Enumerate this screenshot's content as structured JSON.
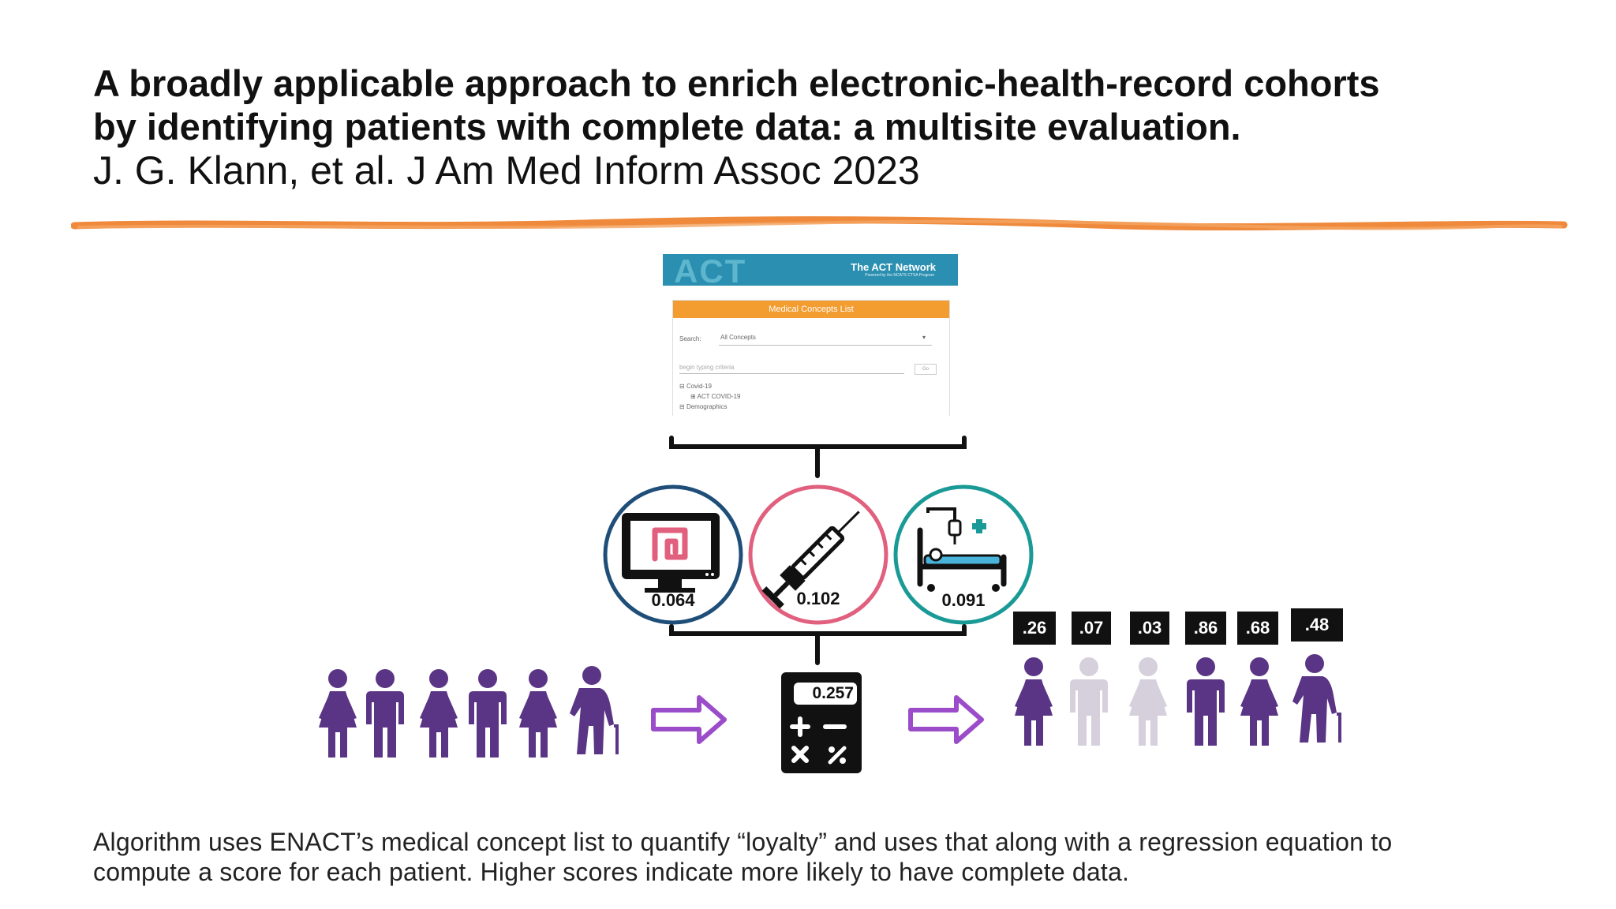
{
  "title": {
    "line1": "A broadly applicable approach to enrich electronic-health-record cohorts",
    "line2": "by identifying patients with complete data: a multisite evaluation."
  },
  "citation": "J. G. Klann, et al. J Am Med Inform Assoc 2023",
  "act_screenshot": {
    "logo": "ACT",
    "network": "The ACT Network",
    "network_sub": "Powered by the NCATS CTSA Program",
    "panel_title": "Medical Concepts List",
    "search_label": "Search:",
    "search_value": "All Concepts",
    "search_placeholder": "begin typing criteria",
    "go_button": "Go",
    "tree": [
      "Covid-19",
      "ACT COVID-19",
      "Demographics"
    ]
  },
  "loyalty_values": [
    {
      "icon": "monitor-intestine-icon",
      "value": "0.064",
      "color": "#1f4e79"
    },
    {
      "icon": "syringe-icon",
      "value": "0.102",
      "color": "#e0607e"
    },
    {
      "icon": "hospital-bed-icon",
      "value": "0.091",
      "color": "#1a9a96"
    }
  ],
  "calculator_value": "0.257",
  "patient_scores": [
    ".26",
    ".07",
    ".03",
    ".86",
    ".68",
    ".48"
  ],
  "colors": {
    "purple": "#5b3585",
    "pale_purple": "#d6d0dc",
    "arrow_purple": "#9b4dc9",
    "orange_rule": "#ef8a3c"
  },
  "caption": {
    "line1": "Algorithm uses ENACT’s medical concept list to quantify “loyalty” and uses that along with a regression equation to",
    "line2": "compute a score for each patient. Higher scores indicate more likely to have complete data."
  }
}
